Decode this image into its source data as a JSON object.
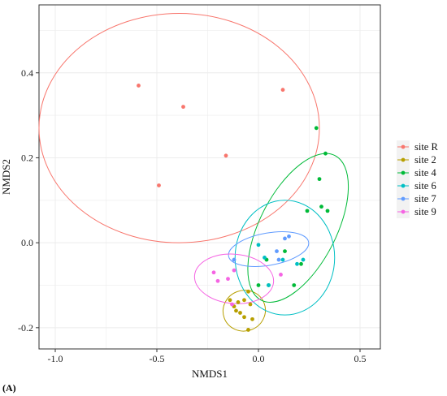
{
  "chart_data": {
    "type": "scatter",
    "panel_label": "(A)",
    "xlabel": "NMDS1",
    "ylabel": "NMDS2",
    "xlim": [
      -1.08,
      0.6
    ],
    "ylim": [
      -0.25,
      0.56
    ],
    "xticks": [
      -1.0,
      -0.5,
      0.0,
      0.5
    ],
    "xtick_labels": [
      "-1.0",
      "-0.5",
      "0.0",
      "0.5"
    ],
    "yticks": [
      -0.2,
      0.0,
      0.2,
      0.4
    ],
    "ytick_labels": [
      "-0.2",
      "0.0",
      "0.2",
      "0.4"
    ],
    "grid": true,
    "legend_position": "right",
    "series": [
      {
        "name": "site R",
        "color": "#F8766D",
        "points": [
          [
            -0.59,
            0.37
          ],
          [
            -0.37,
            0.32
          ],
          [
            0.12,
            0.36
          ],
          [
            -0.16,
            0.205
          ],
          [
            -0.49,
            0.135
          ]
        ],
        "ellipse": {
          "cx": -0.39,
          "cy": 0.27,
          "rx": 0.69,
          "ry": 0.27,
          "angle": 0
        }
      },
      {
        "name": "site 2",
        "color": "#B79F00",
        "points": [
          [
            -0.14,
            -0.135
          ],
          [
            -0.12,
            -0.15
          ],
          [
            -0.1,
            -0.14
          ],
          [
            -0.09,
            -0.165
          ],
          [
            -0.07,
            -0.175
          ],
          [
            -0.05,
            -0.115
          ],
          [
            -0.04,
            -0.145
          ],
          [
            -0.03,
            -0.18
          ],
          [
            -0.07,
            -0.135
          ],
          [
            -0.05,
            -0.205
          ],
          [
            -0.11,
            -0.16
          ]
        ],
        "ellipse": {
          "cx": -0.07,
          "cy": -0.16,
          "rx": 0.1,
          "ry": 0.05,
          "angle": -70
        }
      },
      {
        "name": "site 4",
        "color": "#00BA38",
        "points": [
          [
            0.285,
            0.27
          ],
          [
            0.33,
            0.21
          ],
          [
            0.3,
            0.15
          ],
          [
            0.24,
            0.075
          ],
          [
            0.31,
            0.085
          ],
          [
            0.34,
            0.075
          ],
          [
            0.04,
            -0.04
          ],
          [
            0.0,
            -0.1
          ],
          [
            0.05,
            -0.1
          ],
          [
            0.21,
            -0.05
          ],
          [
            0.175,
            -0.1
          ],
          [
            0.13,
            -0.02
          ]
        ],
        "ellipse": {
          "cx": 0.195,
          "cy": 0.035,
          "rx": 0.4,
          "ry": 0.09,
          "angle": 63
        }
      },
      {
        "name": "site 6",
        "color": "#00BFC4",
        "points": [
          [
            0.0,
            -0.005
          ],
          [
            0.03,
            -0.035
          ],
          [
            0.12,
            -0.04
          ],
          [
            0.19,
            -0.05
          ],
          [
            0.22,
            -0.04
          ],
          [
            0.05,
            -0.1
          ]
        ],
        "ellipse": {
          "cx": 0.13,
          "cy": -0.035,
          "rx": 0.245,
          "ry": 0.135,
          "angle": 0
        }
      },
      {
        "name": "site 7",
        "color": "#619CFF",
        "points": [
          [
            -0.12,
            -0.04
          ],
          [
            0.09,
            -0.02
          ],
          [
            0.13,
            0.01
          ],
          [
            0.15,
            0.015
          ],
          [
            0.1,
            -0.04
          ]
        ],
        "ellipse": {
          "cx": 0.05,
          "cy": -0.015,
          "rx": 0.2,
          "ry": 0.038,
          "angle": 10
        }
      },
      {
        "name": "site 9",
        "color": "#F564E3",
        "points": [
          [
            -0.22,
            -0.07
          ],
          [
            -0.2,
            -0.09
          ],
          [
            -0.15,
            -0.085
          ],
          [
            -0.12,
            -0.065
          ],
          [
            0.11,
            -0.075
          ],
          [
            -0.13,
            -0.145
          ]
        ],
        "ellipse": {
          "cx": -0.12,
          "cy": -0.085,
          "rx": 0.195,
          "ry": 0.058,
          "angle": -5
        }
      }
    ]
  }
}
